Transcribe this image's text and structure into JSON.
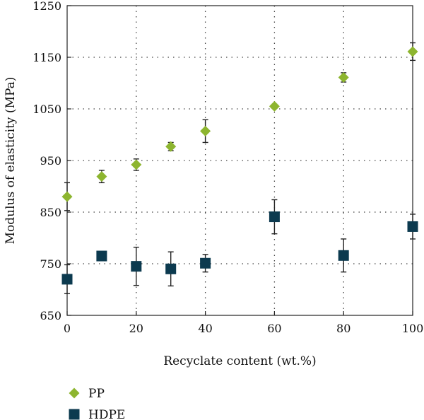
{
  "chart_data": {
    "type": "scatter",
    "title": "",
    "xlabel": "Recyclate content (wt.%)",
    "ylabel": "Modulus of elasticity (MPa)",
    "xlim": [
      0,
      100
    ],
    "ylim": [
      650,
      1250
    ],
    "x_ticks": [
      0,
      20,
      40,
      60,
      80,
      100
    ],
    "y_ticks": [
      650,
      750,
      850,
      950,
      1050,
      1150,
      1250
    ],
    "grid": true,
    "grid_style": "dotted",
    "legend_position": "below-left",
    "series": [
      {
        "name": "PP",
        "marker": "diamond",
        "color": "#8db52f",
        "x": [
          0,
          10,
          20,
          30,
          40,
          60,
          80,
          100
        ],
        "y": [
          880,
          919,
          942,
          977,
          1007,
          1055,
          1111,
          1161
        ],
        "yerr": [
          27,
          12,
          11,
          8,
          22,
          4,
          9,
          17
        ]
      },
      {
        "name": "HDPE",
        "marker": "square",
        "color": "#0c3a4f",
        "x": [
          0,
          10,
          20,
          30,
          40,
          60,
          80,
          100
        ],
        "y": [
          720,
          765,
          745,
          740,
          751,
          841,
          766,
          822
        ],
        "yerr": [
          28,
          3,
          37,
          33,
          17,
          33,
          32,
          24
        ]
      }
    ]
  }
}
